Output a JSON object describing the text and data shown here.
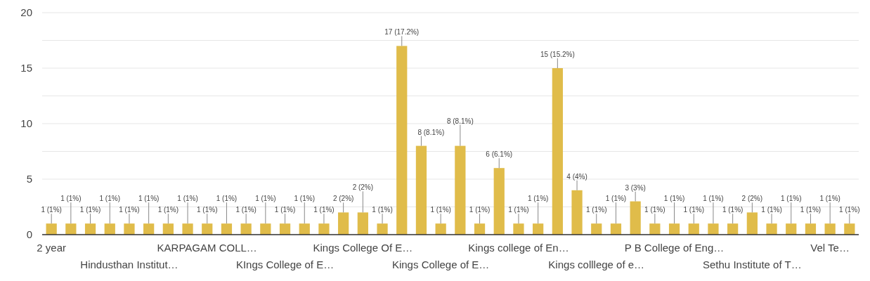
{
  "chart_data": {
    "type": "bar",
    "categories": [
      "2 year",
      null,
      null,
      null,
      "Hindusthan Institut…",
      null,
      null,
      null,
      "KARPAGAM COLL…",
      null,
      null,
      null,
      "KIngs College of E…",
      null,
      null,
      null,
      "Kings College Of E…",
      null,
      null,
      null,
      "Kings College of E…",
      null,
      null,
      null,
      "Kings college of En…",
      null,
      null,
      null,
      "Kings colllege of e…",
      null,
      null,
      null,
      "P B College of Eng…",
      null,
      null,
      null,
      "Sethu Institute of T…",
      null,
      null,
      null,
      "Vel Te…",
      null
    ],
    "values": [
      1,
      1,
      1,
      1,
      1,
      1,
      1,
      1,
      1,
      1,
      1,
      1,
      1,
      1,
      1,
      2,
      2,
      1,
      17,
      8,
      1,
      8,
      1,
      6,
      1,
      1,
      15,
      4,
      1,
      1,
      3,
      1,
      1,
      1,
      1,
      1,
      2,
      1,
      1,
      1,
      1,
      1
    ],
    "value_labels": [
      "1 (1%)",
      "1 (1%)",
      "1 (1%)",
      "1 (1%)",
      "1 (1%)",
      "1 (1%)",
      "1 (1%)",
      "1 (1%)",
      "1 (1%)",
      "1 (1%)",
      "1 (1%)",
      "1 (1%)",
      "1 (1%)",
      "1 (1%)",
      "1 (1%)",
      "2 (2%)",
      "2 (2%)",
      "1 (1%)",
      "17 (17.2%)",
      "8 (8.1%)",
      "1 (1%)",
      "8 (8.1%)",
      "1 (1%)",
      "6 (6.1%)",
      "1 (1%)",
      "1 (1%)",
      "15 (15.2%)",
      "4 (4%)",
      "1 (1%)",
      "1 (1%)",
      "3 (3%)",
      "1 (1%)",
      "1 (1%)",
      "1 (1%)",
      "1 (1%)",
      "1 (1%)",
      "2 (2%)",
      "1 (1%)",
      "1 (1%)",
      "1 (1%)",
      "1 (1%)",
      "1 (1%)"
    ],
    "color": "#e0bc4a",
    "ylim": [
      0,
      20
    ],
    "yticks": [
      0,
      {
        "value": 2.5,
        "label": null
      },
      5,
      {
        "value": 7.5,
        "label": null
      },
      10,
      {
        "value": 12.5,
        "label": null
      },
      15,
      {
        "value": 17.5,
        "label": null
      },
      20
    ],
    "grid": true
  }
}
